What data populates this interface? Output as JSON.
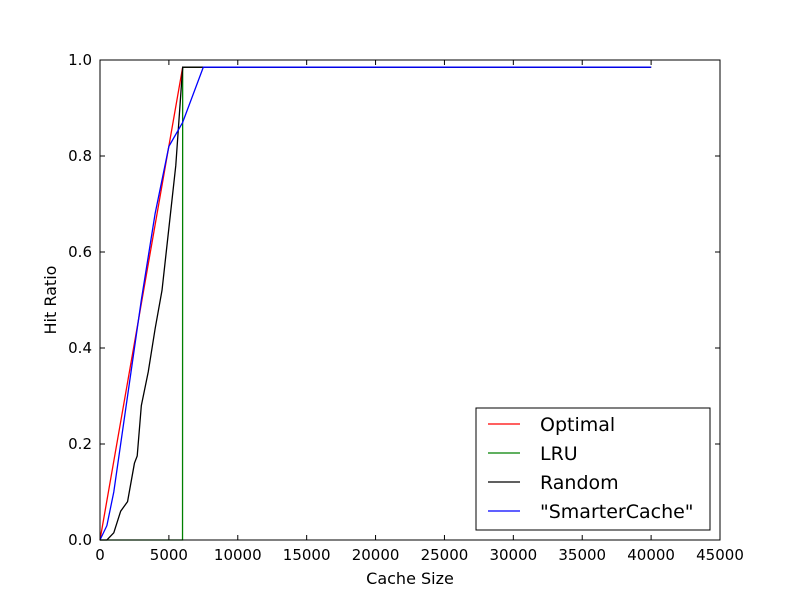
{
  "chart_data": {
    "type": "line",
    "xlabel": "Cache Size",
    "ylabel": "Hit Ratio",
    "xlim": [
      0,
      45000
    ],
    "ylim": [
      0.0,
      1.0
    ],
    "xticks": [
      0,
      5000,
      10000,
      15000,
      20000,
      25000,
      30000,
      35000,
      40000,
      45000
    ],
    "xtick_labels": [
      "0",
      "5000",
      "10000",
      "15000",
      "20000",
      "25000",
      "30000",
      "35000",
      "40000",
      "45000"
    ],
    "yticks": [
      0.0,
      0.2,
      0.4,
      0.6,
      0.8,
      1.0
    ],
    "ytick_labels": [
      "0.0",
      "0.2",
      "0.4",
      "0.6",
      "0.8",
      "1.0"
    ],
    "grid": false,
    "legend_position": "bottom-right",
    "series": [
      {
        "name": "Optimal",
        "color": "#ff0000",
        "x": [
          0,
          6000,
          40000
        ],
        "y": [
          0.0,
          0.985,
          0.985
        ]
      },
      {
        "name": "LRU",
        "color": "#008000",
        "x": [
          0,
          5990,
          6000,
          40000
        ],
        "y": [
          0.0,
          0.0,
          0.985,
          0.985
        ]
      },
      {
        "name": "Random",
        "color": "#000000",
        "x": [
          0,
          500,
          1000,
          1500,
          2000,
          2500,
          2700,
          3000,
          3500,
          4000,
          4500,
          5000,
          5500,
          6000,
          40000
        ],
        "y": [
          0.0,
          0.0,
          0.015,
          0.06,
          0.08,
          0.16,
          0.175,
          0.28,
          0.35,
          0.44,
          0.52,
          0.65,
          0.78,
          0.985,
          0.985
        ]
      },
      {
        "name": "\"SmarterCache\"",
        "color": "#0000ff",
        "x": [
          0,
          500,
          1000,
          2000,
          3000,
          4000,
          5000,
          6000,
          7500,
          40000
        ],
        "y": [
          0.0,
          0.03,
          0.1,
          0.3,
          0.5,
          0.68,
          0.82,
          0.87,
          0.985,
          0.985
        ]
      }
    ]
  }
}
